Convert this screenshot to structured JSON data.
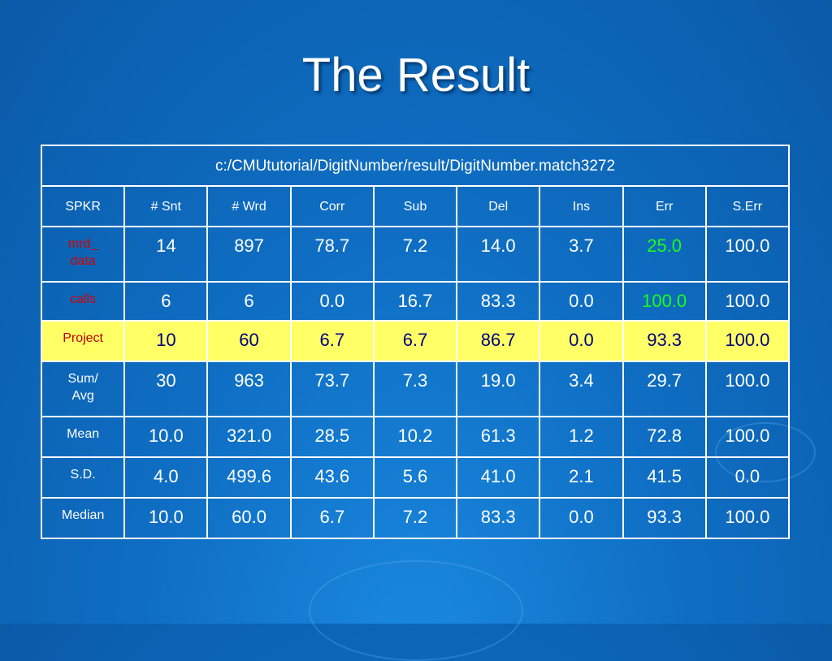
{
  "title": "The Result",
  "table": {
    "caption": "c:/CMUtutorial/DigitNumber/result/DigitNumber.match3272",
    "header": [
      "SPKR",
      "# Snt",
      "# Wrd",
      "Corr",
      "Sub",
      "Del",
      "Ins",
      "Err",
      "S.Err"
    ],
    "rows": [
      [
        "mrd_\ndata",
        "14",
        "897",
        "78.7",
        "7.2",
        "14.0",
        "3.7",
        "25.0",
        "100.0"
      ],
      [
        "calls",
        "6",
        "6",
        "0.0",
        "16.7",
        "83.3",
        "0.0",
        "100.0",
        "100.0"
      ],
      [
        "Project",
        "10",
        "60",
        "6.7",
        "6.7",
        "86.7",
        "0.0",
        "93.3",
        "100.0"
      ],
      [
        "Sum/\nAvg",
        "30",
        "963",
        "73.7",
        "7.3",
        "19.0",
        "3.4",
        "29.7",
        "100.0"
      ],
      [
        "Mean",
        "10.0",
        "321.0",
        "28.5",
        "10.2",
        "61.3",
        "1.2",
        "72.8",
        "100.0"
      ],
      [
        "S.D.",
        "4.0",
        "499.6",
        "43.6",
        "5.6",
        "41.0",
        "2.1",
        "41.5",
        "0.0"
      ],
      [
        "Median",
        "10.0",
        "60.0",
        "6.7",
        "7.2",
        "83.3",
        "0.0",
        "93.3",
        "100.0"
      ]
    ]
  }
}
